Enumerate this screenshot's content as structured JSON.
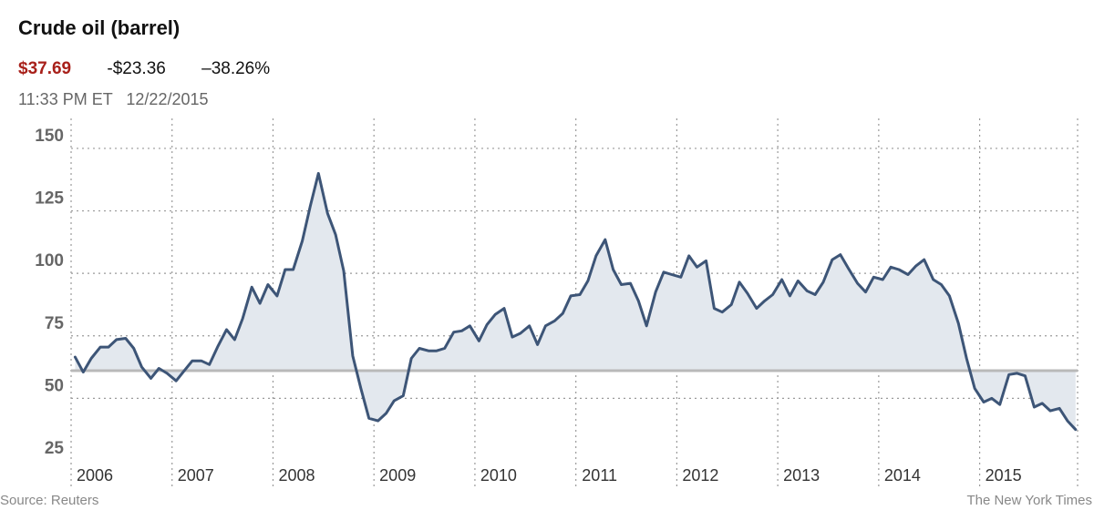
{
  "header": {
    "title": "Crude oil (barrel)",
    "price": "$37.69",
    "change": "-$23.36",
    "change_pct": "–38.26%",
    "time": "11:33 PM ET",
    "date": "12/22/2015"
  },
  "footer": {
    "source": "Source: Reuters",
    "credit": "The New York Times"
  },
  "colors": {
    "line": "#3d5577",
    "area": "#e3e8ee",
    "baseline": "#b9b9b9",
    "price": "#a8201a"
  },
  "chart_data": {
    "type": "area",
    "ylim": [
      25,
      162
    ],
    "y_ticks": [
      25,
      50,
      75,
      100,
      125,
      150
    ],
    "x_range": [
      2006.0,
      2015.97
    ],
    "x_ticks": [
      {
        "label": "2006",
        "x": 2006
      },
      {
        "label": "2007",
        "x": 2007
      },
      {
        "label": "2008",
        "x": 2008
      },
      {
        "label": "2009",
        "x": 2009
      },
      {
        "label": "2010",
        "x": 2010
      },
      {
        "label": "2011",
        "x": 2011
      },
      {
        "label": "2012",
        "x": 2012
      },
      {
        "label": "2013",
        "x": 2013
      },
      {
        "label": "2014",
        "x": 2014
      },
      {
        "label": "2015",
        "x": 2015
      }
    ],
    "reference_value": 61.05,
    "grid": true,
    "series": [
      {
        "x": [
          2006.04,
          2006.12,
          2006.2,
          2006.29,
          2006.37,
          2006.45,
          2006.54,
          2006.62,
          2006.7,
          2006.79,
          2006.87,
          2006.95,
          2007.04,
          2007.12,
          2007.2,
          2007.29,
          2007.37,
          2007.45,
          2007.54,
          2007.62,
          2007.7,
          2007.79,
          2007.87,
          2007.95,
          2008.04,
          2008.12,
          2008.2,
          2008.29,
          2008.37,
          2008.45,
          2008.54,
          2008.62,
          2008.7,
          2008.79,
          2008.87,
          2008.95,
          2009.04,
          2009.12,
          2009.2,
          2009.29,
          2009.37,
          2009.45,
          2009.54,
          2009.62,
          2009.7,
          2009.79,
          2009.87,
          2009.95,
          2010.04,
          2010.12,
          2010.2,
          2010.29,
          2010.37,
          2010.45,
          2010.54,
          2010.62,
          2010.7,
          2010.79,
          2010.87,
          2010.95,
          2011.04,
          2011.12,
          2011.2,
          2011.29,
          2011.37,
          2011.45,
          2011.54,
          2011.62,
          2011.7,
          2011.79,
          2011.87,
          2011.95,
          2012.04,
          2012.12,
          2012.2,
          2012.29,
          2012.37,
          2012.45,
          2012.54,
          2012.62,
          2012.7,
          2012.79,
          2012.87,
          2012.95,
          2013.04,
          2013.12,
          2013.2,
          2013.29,
          2013.37,
          2013.45,
          2013.54,
          2013.62,
          2013.7,
          2013.79,
          2013.87,
          2013.95,
          2014.04,
          2014.12,
          2014.2,
          2014.29,
          2014.37,
          2014.45,
          2014.54,
          2014.62,
          2014.7,
          2014.79,
          2014.87,
          2014.95,
          2015.04,
          2015.12,
          2015.2,
          2015.29,
          2015.37,
          2015.45,
          2015.54,
          2015.62,
          2015.7,
          2015.79,
          2015.87,
          2015.95
        ],
        "values": [
          66.5,
          60.5,
          66,
          70.5,
          70.5,
          73.5,
          74,
          70,
          62.5,
          58,
          62,
          60,
          57,
          61,
          65,
          65,
          63.5,
          70.5,
          77.5,
          73.5,
          82,
          94.5,
          88,
          95.5,
          91,
          101.5,
          101.5,
          113,
          127,
          140,
          124,
          115.5,
          101,
          67,
          54,
          42,
          41,
          44,
          49,
          51,
          66,
          70,
          69,
          69,
          70,
          76.5,
          77,
          79,
          73,
          79.5,
          83.5,
          86,
          74.5,
          76,
          79,
          71.5,
          79,
          81,
          84,
          91,
          91.5,
          97,
          107,
          113.5,
          101.5,
          95.5,
          96,
          89,
          79,
          92.5,
          100.5,
          99.5,
          98.5,
          107,
          102.5,
          105,
          86,
          84.5,
          87.5,
          96.5,
          92,
          86,
          89,
          91.5,
          97.5,
          91,
          97,
          93,
          91.5,
          96.5,
          105.5,
          107.5,
          102,
          96,
          92.5,
          98.5,
          97.5,
          102.5,
          101.5,
          99.5,
          103,
          105.5,
          97.5,
          95.5,
          91,
          80,
          66,
          54,
          48.5,
          50,
          47.5,
          59.5,
          60,
          59,
          46.5,
          48,
          45,
          46,
          41,
          37.5
        ]
      }
    ]
  }
}
